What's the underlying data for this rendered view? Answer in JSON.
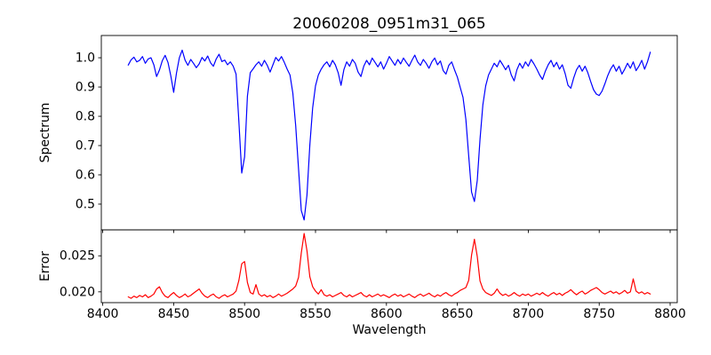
{
  "chart_data": {
    "type": "line",
    "title": "20060208_0951m31_065",
    "xlabel": "Wavelength",
    "xlim": [
      8399,
      8805
    ],
    "xticks": [
      8400,
      8450,
      8500,
      8550,
      8600,
      8650,
      8700,
      8750,
      8800
    ],
    "grid": "off",
    "legend": "none",
    "x": [
      8418,
      8420,
      8422,
      8424,
      8426,
      8428,
      8430,
      8432,
      8434,
      8436,
      8438,
      8440,
      8442,
      8444,
      8446,
      8448,
      8450,
      8452,
      8454,
      8456,
      8458,
      8460,
      8462,
      8464,
      8466,
      8468,
      8470,
      8472,
      8474,
      8476,
      8478,
      8480,
      8482,
      8484,
      8486,
      8488,
      8490,
      8492,
      8494,
      8496,
      8498,
      8500,
      8502,
      8504,
      8506,
      8508,
      8510,
      8512,
      8514,
      8516,
      8518,
      8520,
      8522,
      8524,
      8526,
      8528,
      8530,
      8532,
      8534,
      8536,
      8538,
      8540,
      8542,
      8544,
      8546,
      8548,
      8550,
      8552,
      8554,
      8556,
      8558,
      8560,
      8562,
      8564,
      8566,
      8568,
      8570,
      8572,
      8574,
      8576,
      8578,
      8580,
      8582,
      8584,
      8586,
      8588,
      8590,
      8592,
      8594,
      8596,
      8598,
      8600,
      8602,
      8604,
      8606,
      8608,
      8610,
      8612,
      8614,
      8616,
      8618,
      8620,
      8622,
      8624,
      8626,
      8628,
      8630,
      8632,
      8634,
      8636,
      8638,
      8640,
      8642,
      8644,
      8646,
      8648,
      8650,
      8652,
      8654,
      8656,
      8658,
      8660,
      8662,
      8664,
      8666,
      8668,
      8670,
      8672,
      8674,
      8676,
      8678,
      8680,
      8682,
      8684,
      8686,
      8688,
      8690,
      8692,
      8694,
      8696,
      8698,
      8700,
      8702,
      8704,
      8706,
      8708,
      8710,
      8712,
      8714,
      8716,
      8718,
      8720,
      8722,
      8724,
      8726,
      8728,
      8730,
      8732,
      8734,
      8736,
      8738,
      8740,
      8742,
      8744,
      8746,
      8748,
      8750,
      8752,
      8754,
      8756,
      8758,
      8760,
      8762,
      8764,
      8766,
      8768,
      8770,
      8772,
      8774,
      8776,
      8778,
      8780,
      8782,
      8784,
      8786
    ],
    "panels": [
      {
        "name": "spectrum",
        "ylabel": "Spectrum",
        "line_color": "#0000ff",
        "ylim": [
          0.412,
          1.076
        ],
        "yticks": [
          0.5,
          0.6,
          0.7,
          0.8,
          0.9,
          1.0
        ],
        "ytick_labels": [
          "0.5",
          "0.6",
          "0.7",
          "0.8",
          "0.9",
          "1.0"
        ],
        "absorption_line_centers": [
          8498,
          8542,
          8662
        ],
        "values": [
          0.975,
          0.993,
          1.002,
          0.986,
          0.991,
          1.004,
          0.981,
          0.996,
          1.0,
          0.976,
          0.936,
          0.958,
          0.99,
          1.008,
          0.984,
          0.938,
          0.882,
          0.948,
          1.0,
          1.026,
          0.992,
          0.974,
          0.994,
          0.981,
          0.966,
          0.979,
          1.001,
          0.989,
          1.006,
          0.983,
          0.971,
          0.996,
          1.012,
          0.987,
          0.992,
          0.976,
          0.986,
          0.971,
          0.944,
          0.781,
          0.606,
          0.661,
          0.869,
          0.949,
          0.962,
          0.976,
          0.986,
          0.971,
          0.991,
          0.974,
          0.951,
          0.976,
          1.001,
          0.989,
          1.004,
          0.984,
          0.961,
          0.941,
          0.879,
          0.768,
          0.621,
          0.478,
          0.446,
          0.531,
          0.701,
          0.829,
          0.904,
          0.941,
          0.961,
          0.976,
          0.986,
          0.969,
          0.991,
          0.976,
          0.949,
          0.906,
          0.959,
          0.986,
          0.971,
          0.994,
          0.981,
          0.951,
          0.936,
          0.971,
          0.991,
          0.976,
          0.999,
          0.984,
          0.969,
          0.986,
          0.961,
          0.981,
          1.004,
          0.989,
          0.974,
          0.994,
          0.979,
          0.999,
          0.984,
          0.971,
          0.991,
          1.009,
          0.986,
          0.974,
          0.994,
          0.981,
          0.964,
          0.986,
          0.999,
          0.976,
          0.989,
          0.956,
          0.944,
          0.974,
          0.986,
          0.959,
          0.934,
          0.899,
          0.864,
          0.789,
          0.664,
          0.541,
          0.509,
          0.581,
          0.721,
          0.839,
          0.904,
          0.941,
          0.961,
          0.981,
          0.969,
          0.991,
          0.976,
          0.959,
          0.974,
          0.941,
          0.921,
          0.959,
          0.981,
          0.964,
          0.986,
          0.971,
          0.994,
          0.979,
          0.961,
          0.941,
          0.926,
          0.954,
          0.976,
          0.991,
          0.969,
          0.984,
          0.961,
          0.976,
          0.946,
          0.906,
          0.896,
          0.931,
          0.959,
          0.974,
          0.954,
          0.971,
          0.949,
          0.919,
          0.891,
          0.876,
          0.871,
          0.886,
          0.911,
          0.939,
          0.961,
          0.976,
          0.954,
          0.971,
          0.944,
          0.961,
          0.981,
          0.964,
          0.986,
          0.956,
          0.971,
          0.991,
          0.961,
          0.986,
          1.019
        ]
      },
      {
        "name": "error",
        "ylabel": "Error",
        "line_color": "#ff0000",
        "ylim": [
          0.0185,
          0.0286
        ],
        "yticks": [
          0.02,
          0.025
        ],
        "ytick_labels": [
          "0.020",
          "0.025"
        ],
        "peak_centers": [
          8498,
          8542,
          8662
        ],
        "values": [
          0.0193,
          0.0191,
          0.0194,
          0.0192,
          0.0195,
          0.0193,
          0.0196,
          0.0192,
          0.0194,
          0.0197,
          0.0204,
          0.0207,
          0.0199,
          0.0194,
          0.0192,
          0.0196,
          0.0199,
          0.0195,
          0.0192,
          0.0194,
          0.0197,
          0.0193,
          0.0195,
          0.0198,
          0.0201,
          0.0204,
          0.0198,
          0.0194,
          0.0192,
          0.0195,
          0.0197,
          0.0193,
          0.0191,
          0.0194,
          0.0196,
          0.0193,
          0.0195,
          0.0197,
          0.0201,
          0.0216,
          0.0239,
          0.0242,
          0.0213,
          0.0199,
          0.0197,
          0.021,
          0.0197,
          0.0194,
          0.0196,
          0.0193,
          0.0195,
          0.0192,
          0.0194,
          0.0197,
          0.0194,
          0.0196,
          0.0198,
          0.0201,
          0.0204,
          0.0208,
          0.022,
          0.0254,
          0.0281,
          0.0257,
          0.0221,
          0.0207,
          0.0201,
          0.0197,
          0.0203,
          0.0196,
          0.0194,
          0.0196,
          0.0193,
          0.0195,
          0.0197,
          0.0199,
          0.0195,
          0.0193,
          0.0196,
          0.0193,
          0.0195,
          0.0197,
          0.0199,
          0.0195,
          0.0193,
          0.0196,
          0.0193,
          0.0195,
          0.0197,
          0.0194,
          0.0196,
          0.0194,
          0.0192,
          0.0195,
          0.0197,
          0.0194,
          0.0196,
          0.0193,
          0.0195,
          0.0197,
          0.0194,
          0.0192,
          0.0195,
          0.0197,
          0.0194,
          0.0196,
          0.0198,
          0.0195,
          0.0193,
          0.0196,
          0.0194,
          0.0197,
          0.0199,
          0.0196,
          0.0194,
          0.0197,
          0.0199,
          0.0202,
          0.0204,
          0.0206,
          0.0216,
          0.0251,
          0.0273,
          0.0249,
          0.0215,
          0.0204,
          0.0199,
          0.0197,
          0.0195,
          0.0198,
          0.0204,
          0.0198,
          0.0195,
          0.0197,
          0.0194,
          0.0196,
          0.0199,
          0.0196,
          0.0194,
          0.0197,
          0.0195,
          0.0197,
          0.0194,
          0.0196,
          0.0198,
          0.0196,
          0.0199,
          0.0196,
          0.0194,
          0.0197,
          0.0199,
          0.0196,
          0.0198,
          0.0195,
          0.0198,
          0.02,
          0.0203,
          0.0199,
          0.0196,
          0.0199,
          0.0201,
          0.0197,
          0.0199,
          0.0202,
          0.0204,
          0.0206,
          0.0203,
          0.0199,
          0.0197,
          0.0199,
          0.0201,
          0.0198,
          0.02,
          0.0197,
          0.0199,
          0.0202,
          0.0198,
          0.02,
          0.0218,
          0.0201,
          0.0198,
          0.02,
          0.0197,
          0.0199,
          0.0197
        ]
      }
    ]
  }
}
